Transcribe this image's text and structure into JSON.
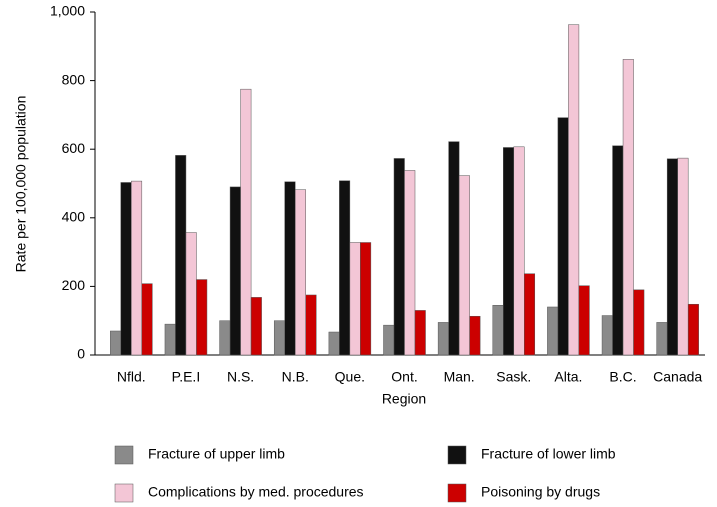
{
  "chart_data": {
    "type": "bar",
    "x_label": "Region",
    "y_label": "Rate per 100,000 population",
    "categories": [
      "Nfld.",
      "P.E.I",
      "N.S.",
      "N.B.",
      "Que.",
      "Ont.",
      "Man.",
      "Sask.",
      "Alta.",
      "B.C.",
      "Canada"
    ],
    "series": [
      {
        "name": "Fracture of upper limb",
        "color": "#8a8a8a",
        "values": [
          70,
          90,
          100,
          100,
          67,
          87,
          95,
          145,
          140,
          115,
          95
        ]
      },
      {
        "name": "Fracture of lower limb",
        "color": "#111111",
        "values": [
          503,
          582,
          490,
          505,
          508,
          573,
          622,
          605,
          692,
          610,
          572
        ]
      },
      {
        "name": "Complications by med. procedures",
        "color": "#f3c6d6",
        "values": [
          507,
          357,
          775,
          482,
          328,
          538,
          523,
          607,
          963,
          862,
          574
        ]
      },
      {
        "name": "Poisoning by drugs",
        "color": "#cc0000",
        "values": [
          208,
          220,
          168,
          175,
          328,
          130,
          113,
          237,
          202,
          190,
          148
        ]
      }
    ],
    "ylim": [
      0,
      1000
    ],
    "yticks": [
      0,
      200,
      400,
      600,
      800,
      {
        "value": 1000,
        "label": "1,000"
      }
    ],
    "legend": "bottom"
  }
}
